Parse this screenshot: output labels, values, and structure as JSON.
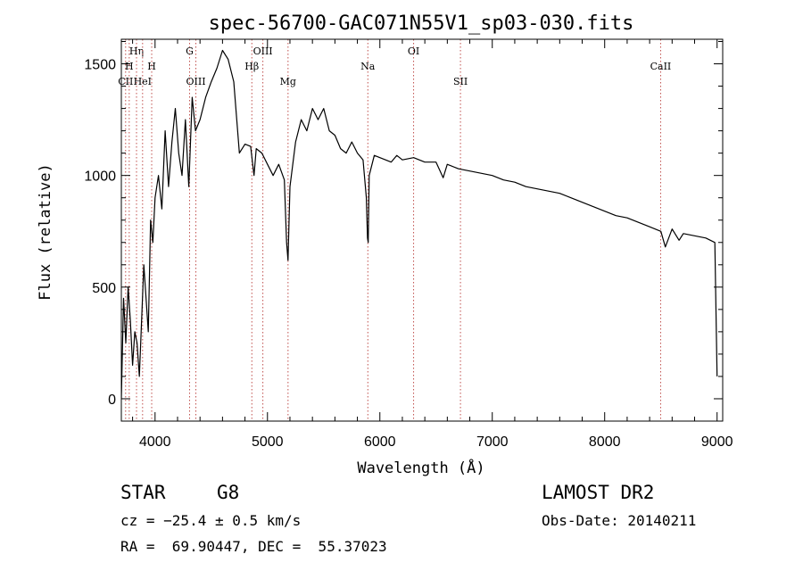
{
  "chart_data": {
    "type": "line",
    "title": "spec-56700-GAC071N55V1_sp03-030.fits",
    "xlabel": "Wavelength (Å)",
    "ylabel": "Flux (relative)",
    "xlim": [
      3700,
      9050
    ],
    "ylim": [
      -100,
      1610
    ],
    "x_ticks": [
      4000,
      5000,
      6000,
      7000,
      8000,
      9000
    ],
    "y_ticks": [
      0,
      500,
      1000,
      1500
    ],
    "grid": false,
    "series": [
      {
        "color": "#000000",
        "x": [
          3700,
          3720,
          3740,
          3760,
          3780,
          3800,
          3820,
          3840,
          3860,
          3880,
          3900,
          3920,
          3940,
          3960,
          3980,
          4000,
          4030,
          4060,
          4090,
          4120,
          4150,
          4180,
          4210,
          4240,
          4270,
          4300,
          4330,
          4360,
          4400,
          4450,
          4500,
          4550,
          4600,
          4650,
          4700,
          4750,
          4800,
          4850,
          4880,
          4900,
          4950,
          5000,
          5050,
          5100,
          5150,
          5170,
          5183,
          5200,
          5250,
          5300,
          5350,
          5400,
          5450,
          5500,
          5550,
          5600,
          5650,
          5700,
          5750,
          5800,
          5850,
          5880,
          5890,
          5896,
          5905,
          5950,
          6000,
          6050,
          6100,
          6150,
          6200,
          6300,
          6400,
          6500,
          6563,
          6600,
          6700,
          6800,
          6900,
          7000,
          7100,
          7200,
          7300,
          7400,
          7500,
          7600,
          7700,
          7800,
          7900,
          8000,
          8100,
          8200,
          8300,
          8400,
          8500,
          8540,
          8600,
          8662,
          8700,
          8800,
          8900,
          8980,
          9000
        ],
        "y": [
          0,
          450,
          250,
          500,
          350,
          150,
          300,
          250,
          100,
          350,
          600,
          450,
          300,
          800,
          700,
          900,
          1000,
          850,
          1200,
          950,
          1150,
          1300,
          1100,
          1000,
          1250,
          950,
          1350,
          1200,
          1250,
          1350,
          1420,
          1480,
          1560,
          1520,
          1420,
          1100,
          1140,
          1130,
          1000,
          1120,
          1100,
          1050,
          1000,
          1050,
          980,
          700,
          620,
          950,
          1150,
          1250,
          1200,
          1300,
          1250,
          1300,
          1200,
          1180,
          1120,
          1100,
          1150,
          1100,
          1070,
          900,
          720,
          700,
          1000,
          1090,
          1080,
          1070,
          1060,
          1090,
          1070,
          1080,
          1060,
          1060,
          990,
          1050,
          1030,
          1020,
          1010,
          1000,
          980,
          970,
          950,
          940,
          930,
          920,
          900,
          880,
          860,
          840,
          820,
          810,
          790,
          770,
          750,
          680,
          760,
          710,
          740,
          730,
          720,
          700,
          100
        ]
      }
    ],
    "line_markers": [
      {
        "label": "Hη",
        "x": 3835,
        "row": 1
      },
      {
        "label": "CII",
        "x": 3738,
        "row": 3
      },
      {
        "label": "HeI",
        "x": 3889,
        "row": 3
      },
      {
        "label": "H",
        "x": 3770,
        "row": 2
      },
      {
        "label": "H",
        "x": 3970,
        "row": 2
      },
      {
        "label": "G",
        "x": 4307,
        "row": 1
      },
      {
        "label": "OIII",
        "x": 4363,
        "row": 3
      },
      {
        "label": "OIII",
        "x": 4959,
        "row": 1
      },
      {
        "label": "Hβ",
        "x": 4861,
        "row": 2
      },
      {
        "label": "Mg",
        "x": 5183,
        "row": 3
      },
      {
        "label": "Na",
        "x": 5893,
        "row": 2
      },
      {
        "label": "OI",
        "x": 6300,
        "row": 1
      },
      {
        "label": "SII",
        "x": 6717,
        "row": 3
      },
      {
        "label": "CaII",
        "x": 8498,
        "row": 2
      }
    ]
  },
  "info": {
    "object_class": "STAR",
    "subclass": "G8",
    "survey": "LAMOST DR2",
    "redshift": "cz = −25.4 ± 0.5 km/s",
    "obs_date": "Obs-Date: 20140211",
    "coords": "RA =  69.90447, DEC =  55.37023"
  },
  "colors": {
    "spectrum": "#000000",
    "marker_line": "#c0504d",
    "background": "#ffffff"
  }
}
